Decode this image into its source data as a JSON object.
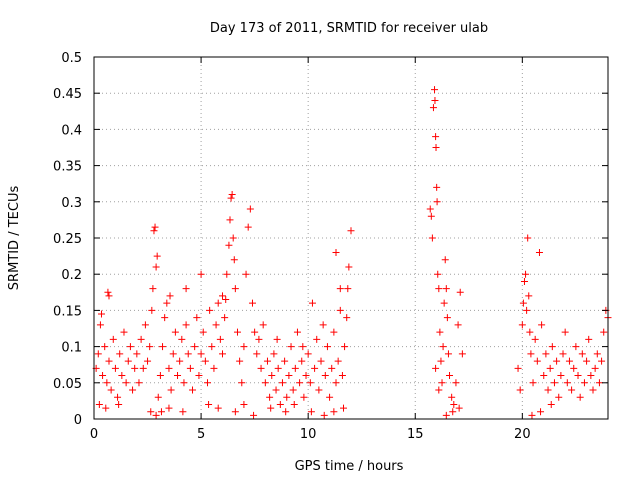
{
  "chart_data": {
    "type": "scatter",
    "title": "Day 173 of 2011, SRMTID for receiver ulab",
    "xlabel": "GPS time / hours",
    "ylabel": "SRMTID / TECUs",
    "xlim": [
      0,
      24
    ],
    "ylim": [
      0,
      0.5
    ],
    "xticks": [
      0,
      5,
      10,
      15,
      20
    ],
    "xtick_labels": [
      "0",
      "5",
      "10",
      "15",
      "20"
    ],
    "yticks": [
      0,
      0.05,
      0.1,
      0.15,
      0.2,
      0.25,
      0.3,
      0.35,
      0.4,
      0.45,
      0.5
    ],
    "ytick_labels": [
      "0",
      "0.05",
      "0.1",
      "0.15",
      "0.2",
      "0.25",
      "0.3",
      "0.35",
      "0.4",
      "0.45",
      "0.5"
    ],
    "grid": true,
    "marker": "+",
    "marker_color": "#ff0000",
    "series": [
      {
        "name": "SRMTID",
        "points": [
          [
            0.1,
            0.07
          ],
          [
            0.2,
            0.09
          ],
          [
            0.3,
            0.13
          ],
          [
            0.35,
            0.145
          ],
          [
            0.4,
            0.06
          ],
          [
            0.5,
            0.1
          ],
          [
            0.6,
            0.05
          ],
          [
            0.7,
            0.08
          ],
          [
            0.8,
            0.04
          ],
          [
            0.9,
            0.11
          ],
          [
            1.0,
            0.07
          ],
          [
            1.1,
            0.03
          ],
          [
            1.2,
            0.09
          ],
          [
            1.3,
            0.06
          ],
          [
            1.4,
            0.12
          ],
          [
            1.5,
            0.05
          ],
          [
            1.6,
            0.08
          ],
          [
            1.7,
            0.1
          ],
          [
            1.8,
            0.04
          ],
          [
            1.9,
            0.07
          ],
          [
            0.65,
            0.175
          ],
          [
            0.7,
            0.17
          ],
          [
            0.25,
            0.02
          ],
          [
            0.55,
            0.015
          ],
          [
            1.15,
            0.02
          ],
          [
            2.0,
            0.09
          ],
          [
            2.1,
            0.05
          ],
          [
            2.2,
            0.11
          ],
          [
            2.3,
            0.07
          ],
          [
            2.4,
            0.13
          ],
          [
            2.5,
            0.08
          ],
          [
            2.6,
            0.1
          ],
          [
            2.7,
            0.15
          ],
          [
            2.75,
            0.18
          ],
          [
            2.8,
            0.26
          ],
          [
            2.85,
            0.265
          ],
          [
            2.9,
            0.21
          ],
          [
            2.95,
            0.225
          ],
          [
            3.0,
            0.03
          ],
          [
            3.1,
            0.06
          ],
          [
            3.2,
            0.1
          ],
          [
            3.3,
            0.14
          ],
          [
            3.4,
            0.16
          ],
          [
            3.5,
            0.07
          ],
          [
            3.6,
            0.04
          ],
          [
            3.7,
            0.09
          ],
          [
            3.8,
            0.12
          ],
          [
            3.9,
            0.06
          ],
          [
            4.0,
            0.08
          ],
          [
            4.1,
            0.11
          ],
          [
            4.2,
            0.05
          ],
          [
            4.3,
            0.13
          ],
          [
            4.4,
            0.09
          ],
          [
            4.5,
            0.07
          ],
          [
            4.6,
            0.04
          ],
          [
            2.65,
            0.01
          ],
          [
            2.9,
            0.005
          ],
          [
            3.15,
            0.01
          ],
          [
            3.5,
            0.015
          ],
          [
            4.15,
            0.01
          ],
          [
            4.3,
            0.18
          ],
          [
            3.55,
            0.17
          ],
          [
            4.7,
            0.1
          ],
          [
            4.8,
            0.14
          ],
          [
            4.9,
            0.06
          ],
          [
            5.0,
            0.09
          ],
          [
            5.1,
            0.12
          ],
          [
            5.2,
            0.08
          ],
          [
            5.3,
            0.05
          ],
          [
            5.4,
            0.15
          ],
          [
            5.5,
            0.1
          ],
          [
            5.6,
            0.07
          ],
          [
            5.7,
            0.13
          ],
          [
            5.8,
            0.16
          ],
          [
            5.9,
            0.11
          ],
          [
            6.0,
            0.09
          ],
          [
            6.1,
            0.14
          ],
          [
            6.2,
            0.2
          ],
          [
            6.3,
            0.24
          ],
          [
            6.35,
            0.275
          ],
          [
            6.4,
            0.305
          ],
          [
            6.45,
            0.31
          ],
          [
            6.5,
            0.25
          ],
          [
            6.55,
            0.22
          ],
          [
            6.6,
            0.18
          ],
          [
            6.7,
            0.12
          ],
          [
            6.8,
            0.08
          ],
          [
            6.9,
            0.05
          ],
          [
            7.0,
            0.1
          ],
          [
            7.1,
            0.2
          ],
          [
            7.2,
            0.265
          ],
          [
            7.3,
            0.29
          ],
          [
            7.4,
            0.16
          ],
          [
            7.5,
            0.12
          ],
          [
            7.6,
            0.09
          ],
          [
            7.7,
            0.11
          ],
          [
            7.8,
            0.07
          ],
          [
            7.9,
            0.13
          ],
          [
            5.0,
            0.2
          ],
          [
            5.35,
            0.02
          ],
          [
            5.8,
            0.015
          ],
          [
            6.6,
            0.01
          ],
          [
            7.0,
            0.02
          ],
          [
            7.45,
            0.005
          ],
          [
            6.0,
            0.17
          ],
          [
            6.15,
            0.165
          ],
          [
            8.0,
            0.05
          ],
          [
            8.1,
            0.08
          ],
          [
            8.2,
            0.03
          ],
          [
            8.3,
            0.06
          ],
          [
            8.4,
            0.09
          ],
          [
            8.5,
            0.04
          ],
          [
            8.6,
            0.07
          ],
          [
            8.7,
            0.02
          ],
          [
            8.8,
            0.05
          ],
          [
            8.9,
            0.08
          ],
          [
            9.0,
            0.03
          ],
          [
            9.1,
            0.06
          ],
          [
            9.2,
            0.1
          ],
          [
            9.3,
            0.04
          ],
          [
            9.4,
            0.07
          ],
          [
            9.5,
            0.12
          ],
          [
            9.6,
            0.05
          ],
          [
            9.7,
            0.08
          ],
          [
            9.8,
            0.03
          ],
          [
            9.9,
            0.06
          ],
          [
            8.25,
            0.015
          ],
          [
            8.95,
            0.01
          ],
          [
            9.35,
            0.02
          ],
          [
            9.75,
            0.1
          ],
          [
            8.55,
            0.11
          ],
          [
            10.0,
            0.09
          ],
          [
            10.1,
            0.05
          ],
          [
            10.2,
            0.16
          ],
          [
            10.3,
            0.07
          ],
          [
            10.4,
            0.11
          ],
          [
            10.5,
            0.04
          ],
          [
            10.6,
            0.08
          ],
          [
            10.7,
            0.13
          ],
          [
            10.8,
            0.06
          ],
          [
            10.9,
            0.1
          ],
          [
            11.0,
            0.03
          ],
          [
            11.1,
            0.07
          ],
          [
            11.2,
            0.12
          ],
          [
            11.3,
            0.05
          ],
          [
            11.4,
            0.08
          ],
          [
            11.5,
            0.15
          ],
          [
            11.6,
            0.06
          ],
          [
            11.7,
            0.1
          ],
          [
            11.8,
            0.14
          ],
          [
            11.85,
            0.18
          ],
          [
            11.9,
            0.21
          ],
          [
            12.0,
            0.26
          ],
          [
            11.3,
            0.23
          ],
          [
            11.5,
            0.18
          ],
          [
            10.15,
            0.01
          ],
          [
            10.75,
            0.005
          ],
          [
            11.2,
            0.01
          ],
          [
            11.65,
            0.015
          ],
          [
            15.7,
            0.29
          ],
          [
            15.75,
            0.28
          ],
          [
            15.8,
            0.25
          ],
          [
            15.85,
            0.43
          ],
          [
            15.9,
            0.455
          ],
          [
            15.92,
            0.44
          ],
          [
            15.95,
            0.39
          ],
          [
            15.97,
            0.375
          ],
          [
            16.0,
            0.32
          ],
          [
            16.02,
            0.3
          ],
          [
            16.05,
            0.2
          ],
          [
            16.1,
            0.18
          ],
          [
            16.15,
            0.12
          ],
          [
            16.2,
            0.08
          ],
          [
            16.25,
            0.05
          ],
          [
            16.3,
            0.1
          ],
          [
            16.35,
            0.16
          ],
          [
            16.4,
            0.22
          ],
          [
            16.45,
            0.18
          ],
          [
            16.5,
            0.14
          ],
          [
            16.55,
            0.09
          ],
          [
            16.6,
            0.06
          ],
          [
            16.7,
            0.03
          ],
          [
            16.8,
            0.02
          ],
          [
            16.9,
            0.05
          ],
          [
            17.0,
            0.13
          ],
          [
            17.1,
            0.175
          ],
          [
            17.2,
            0.09
          ],
          [
            16.75,
            0.01
          ],
          [
            17.05,
            0.015
          ],
          [
            15.95,
            0.07
          ],
          [
            16.1,
            0.04
          ],
          [
            16.45,
            0.005
          ],
          [
            19.8,
            0.07
          ],
          [
            19.9,
            0.04
          ],
          [
            20.0,
            0.13
          ],
          [
            20.05,
            0.16
          ],
          [
            20.1,
            0.19
          ],
          [
            20.15,
            0.2
          ],
          [
            20.2,
            0.15
          ],
          [
            20.25,
            0.25
          ],
          [
            20.3,
            0.17
          ],
          [
            20.35,
            0.12
          ],
          [
            20.4,
            0.09
          ],
          [
            20.5,
            0.05
          ],
          [
            20.6,
            0.11
          ],
          [
            20.7,
            0.08
          ],
          [
            20.8,
            0.23
          ],
          [
            20.9,
            0.13
          ],
          [
            21.0,
            0.06
          ],
          [
            21.1,
            0.09
          ],
          [
            21.2,
            0.04
          ],
          [
            21.3,
            0.07
          ],
          [
            21.4,
            0.1
          ],
          [
            21.5,
            0.05
          ],
          [
            21.6,
            0.08
          ],
          [
            21.7,
            0.03
          ],
          [
            21.8,
            0.06
          ],
          [
            21.9,
            0.09
          ],
          [
            22.0,
            0.12
          ],
          [
            22.1,
            0.05
          ],
          [
            22.2,
            0.08
          ],
          [
            22.3,
            0.04
          ],
          [
            22.4,
            0.07
          ],
          [
            22.5,
            0.1
          ],
          [
            22.6,
            0.06
          ],
          [
            22.7,
            0.03
          ],
          [
            22.8,
            0.09
          ],
          [
            22.9,
            0.05
          ],
          [
            23.0,
            0.08
          ],
          [
            23.1,
            0.11
          ],
          [
            23.2,
            0.06
          ],
          [
            23.3,
            0.04
          ],
          [
            23.4,
            0.07
          ],
          [
            23.5,
            0.09
          ],
          [
            23.6,
            0.05
          ],
          [
            23.7,
            0.08
          ],
          [
            23.8,
            0.12
          ],
          [
            23.9,
            0.15
          ],
          [
            24.0,
            0.14
          ],
          [
            20.45,
            0.005
          ],
          [
            20.85,
            0.01
          ],
          [
            21.35,
            0.02
          ]
        ]
      }
    ]
  }
}
